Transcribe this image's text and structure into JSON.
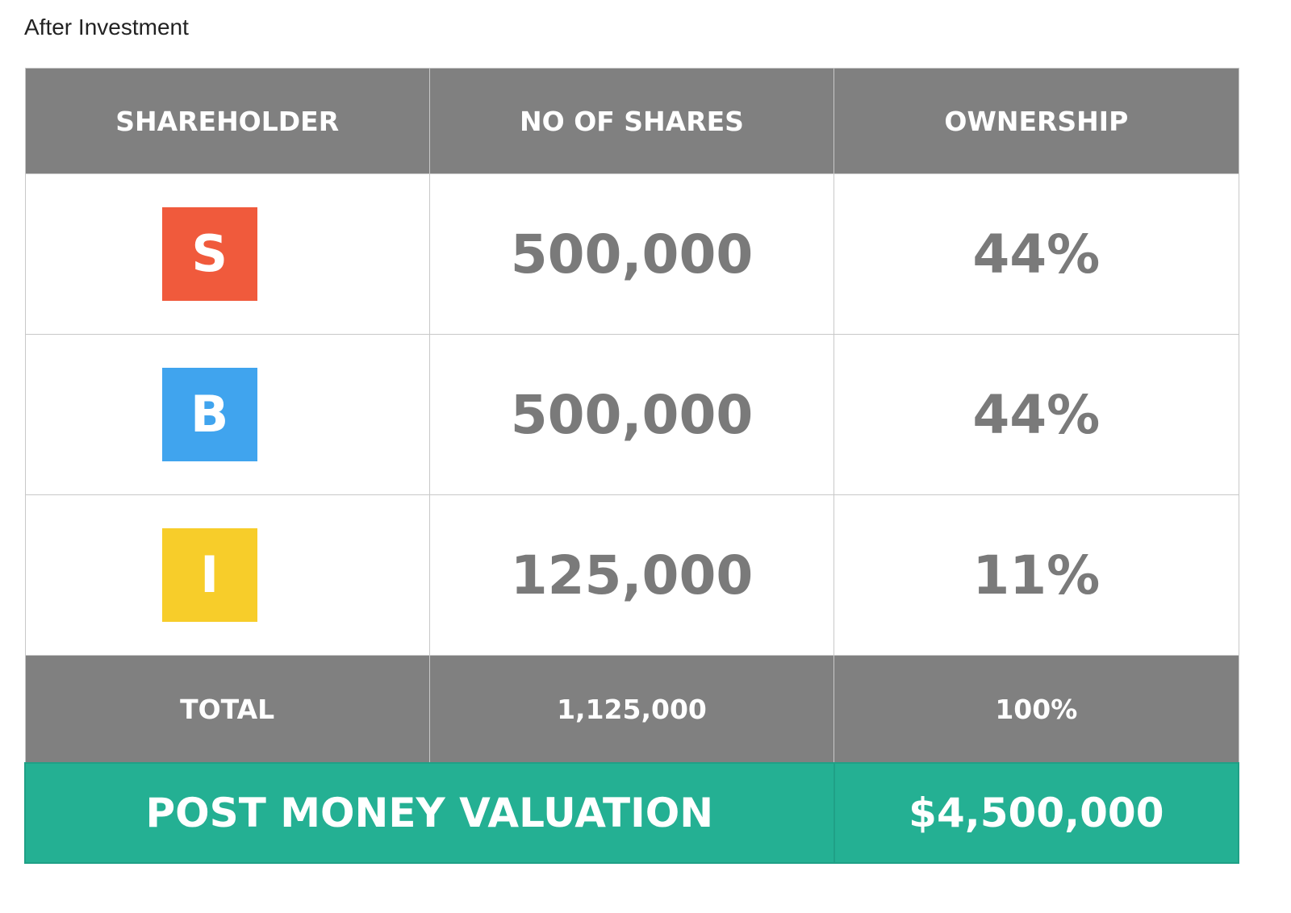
{
  "title": "After Investment",
  "table": {
    "headers": [
      "SHAREHOLDER",
      "NO OF SHARES",
      "OWNERSHIP"
    ],
    "rows": [
      [
        "S",
        "500,000",
        "44%"
      ],
      [
        "B",
        "500,000",
        "44%"
      ],
      [
        "I",
        "125,000",
        "11%"
      ]
    ],
    "total": [
      "TOTAL",
      "1,125,000",
      "100%"
    ],
    "valuation": [
      "POST MONEY VALUATION",
      "$4,500,000"
    ]
  }
}
